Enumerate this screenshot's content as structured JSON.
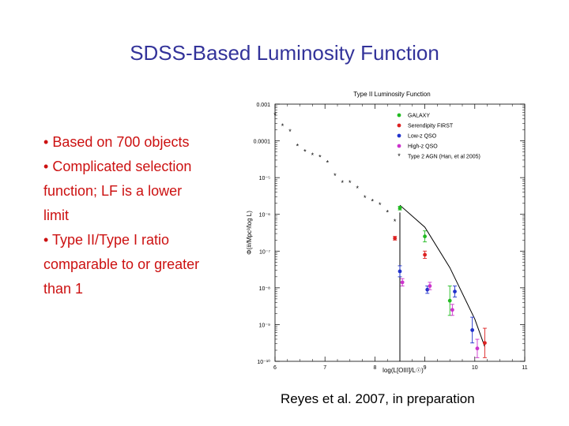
{
  "slide": {
    "title": "SDSS-Based Luminosity Function",
    "bullets": [
      {
        "marker": "•",
        "lines": [
          "Based on 700 objects"
        ]
      },
      {
        "marker": "•",
        "lines": [
          "Complicated selection",
          "function; LF is a lower",
          "limit"
        ]
      },
      {
        "marker": "•",
        "lines": [
          "Type II/Type I ratio",
          "comparable to or greater",
          "than 1"
        ]
      }
    ],
    "caption": "Reyes et al. 2007, in preparation"
  },
  "colors": {
    "title": "#33339a",
    "bullets": "#cc1111",
    "galaxy": "#22bb22",
    "first": "#dd2222",
    "lowz": "#2233cc",
    "highz": "#cc33cc",
    "han": "#000000"
  },
  "chart_data": {
    "type": "scatter",
    "title": "Type II Luminosity Function",
    "xlabel": "log(L[OIII]/L☉)",
    "ylabel": "Φ(#/Mpc³/log L)",
    "xlim": [
      6,
      11
    ],
    "ylim_log10": [
      -10,
      -3
    ],
    "log_y": true,
    "x_ticks": [
      "6",
      "7",
      "8",
      "9",
      "10",
      "11"
    ],
    "y_ticks": [
      {
        "exp": -3,
        "label": "0.001"
      },
      {
        "exp": -4,
        "label": "0.0001"
      },
      {
        "exp": -5,
        "label": "10⁻⁵"
      },
      {
        "exp": -6,
        "label": "10⁻⁶"
      },
      {
        "exp": -7,
        "label": "10⁻⁷"
      },
      {
        "exp": -8,
        "label": "10⁻⁸"
      },
      {
        "exp": -9,
        "label": "10⁻⁹"
      },
      {
        "exp": -10,
        "label": "10⁻¹⁰"
      }
    ],
    "legend_position": "top-right",
    "series": [
      {
        "name": "GALAXY",
        "color_key": "galaxy",
        "marker": "dot",
        "points": [
          {
            "x": 8.5,
            "y": -5.83,
            "err": 0.05
          },
          {
            "x": 9.0,
            "y": -6.6,
            "err": 0.15
          },
          {
            "x": 9.5,
            "y": -8.35,
            "err": 0.4
          }
        ]
      },
      {
        "name": "Serendipity FIRST",
        "color_key": "first",
        "marker": "dot",
        "points": [
          {
            "x": 8.4,
            "y": -6.65,
            "err": 0.05
          },
          {
            "x": 9.0,
            "y": -7.1,
            "err": 0.1
          },
          {
            "x": 10.2,
            "y": -9.5,
            "err": 0.4
          }
        ]
      },
      {
        "name": "Low-z QSO",
        "color_key": "lowz",
        "marker": "dot",
        "points": [
          {
            "x": 8.5,
            "y": -7.55,
            "err": 0.15
          },
          {
            "x": 9.05,
            "y": -8.05,
            "err": 0.1
          },
          {
            "x": 9.6,
            "y": -8.1,
            "err": 0.15
          },
          {
            "x": 9.95,
            "y": -9.15,
            "err": 0.35
          }
        ]
      },
      {
        "name": "High-z QSO",
        "color_key": "highz",
        "marker": "dot",
        "points": [
          {
            "x": 8.55,
            "y": -7.85,
            "err": 0.1
          },
          {
            "x": 9.1,
            "y": -7.95,
            "err": 0.1
          },
          {
            "x": 9.55,
            "y": -8.6,
            "err": 0.15
          },
          {
            "x": 10.05,
            "y": -9.65,
            "err": 0.25
          }
        ]
      },
      {
        "name": "Type 2 AGN (Han, et al 2005)",
        "color_key": "han",
        "marker": "star",
        "points": [
          {
            "x": 6.0,
            "y": -3.3
          },
          {
            "x": 6.15,
            "y": -3.6
          },
          {
            "x": 6.3,
            "y": -3.75
          },
          {
            "x": 6.45,
            "y": -4.15
          },
          {
            "x": 6.6,
            "y": -4.3
          },
          {
            "x": 6.75,
            "y": -4.4
          },
          {
            "x": 6.9,
            "y": -4.45
          },
          {
            "x": 7.05,
            "y": -4.6
          },
          {
            "x": 7.2,
            "y": -4.95
          },
          {
            "x": 7.35,
            "y": -5.15
          },
          {
            "x": 7.5,
            "y": -5.15
          },
          {
            "x": 7.65,
            "y": -5.3
          },
          {
            "x": 7.8,
            "y": -5.55
          },
          {
            "x": 7.95,
            "y": -5.65
          },
          {
            "x": 8.1,
            "y": -5.75
          },
          {
            "x": 8.25,
            "y": -5.95
          },
          {
            "x": 8.4,
            "y": -6.2
          }
        ]
      }
    ],
    "model_curve": [
      {
        "x": 8.5,
        "y": -5.75
      },
      {
        "x": 9.0,
        "y": -6.35
      },
      {
        "x": 9.5,
        "y": -7.45
      },
      {
        "x": 10.0,
        "y": -8.85
      },
      {
        "x": 10.2,
        "y": -9.6
      }
    ],
    "lower_limit_line": {
      "x": 8.5,
      "y_top": -5.95,
      "y_bottom": -10
    }
  }
}
